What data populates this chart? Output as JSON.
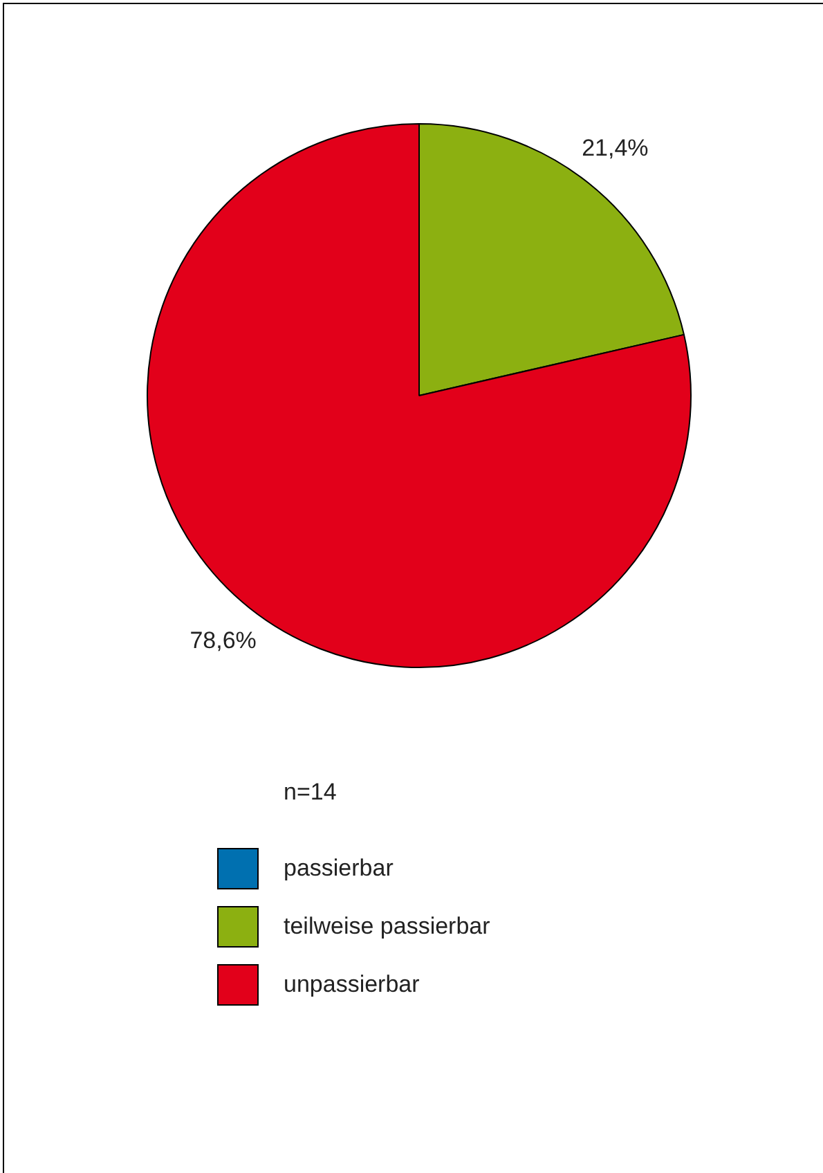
{
  "chart_data": {
    "type": "pie",
    "categories": [
      "passierbar",
      "teilweise passierbar",
      "unpassierbar"
    ],
    "values": [
      0,
      21.4,
      78.6
    ],
    "colors": [
      "#0070b0",
      "#8cb011",
      "#e2001a"
    ],
    "value_labels": [
      null,
      "21,4%",
      "78,6%"
    ],
    "annotations": [
      "n=14"
    ],
    "legend": "bottom"
  }
}
